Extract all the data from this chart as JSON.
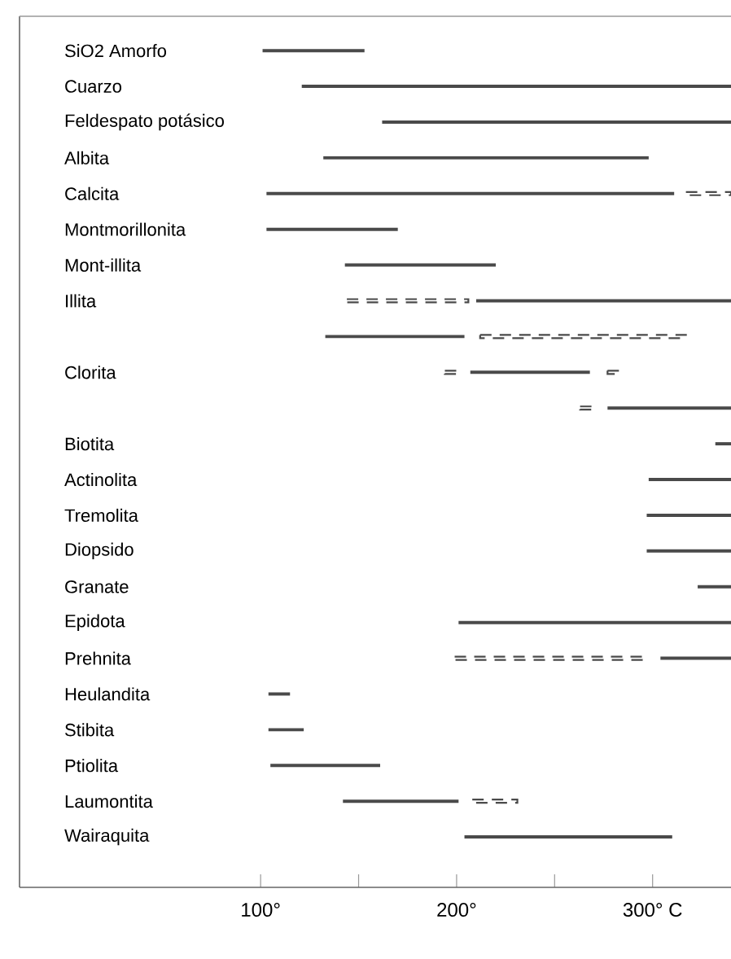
{
  "chart_data": {
    "type": "bar",
    "orientation": "horizontal",
    "categories": [
      "SiO2 Amorfo",
      "Cuarzo",
      "Feldespato potásico",
      "Albita",
      "Calcita",
      "Montmorillonita",
      "Mont-illita",
      "Illita",
      null,
      "Clorita",
      null,
      "Biotita",
      "Actinolita",
      "Tremolita",
      "Diopsido",
      "Granate",
      "Epidota",
      "Prehnita",
      "Heulandita",
      "Stibita",
      "Ptiolita",
      "Laumontita",
      "Wairaquita"
    ],
    "xlim": [
      -23,
      340
    ],
    "xticks": [
      {
        "value": 100,
        "label": "100°"
      },
      {
        "value": 150,
        "label": null
      },
      {
        "value": 200,
        "label": "200°"
      },
      {
        "value": 250,
        "label": null
      },
      {
        "value": 300,
        "label": "300° C"
      }
    ],
    "series": [
      {
        "color": "#4a4a4a",
        "line_style": "solid",
        "base": [
          101,
          121,
          162,
          132,
          103,
          103,
          143,
          210,
          133,
          207,
          277,
          332,
          298,
          297,
          297,
          323,
          201,
          304,
          104,
          104,
          105,
          142,
          204
        ],
        "values": [
          52,
          219,
          178,
          166,
          208,
          67,
          77,
          130,
          71,
          61,
          63,
          8,
          42,
          43,
          43,
          17,
          139,
          36,
          11,
          18,
          56,
          59,
          106
        ]
      },
      {
        "color": "#4a4a4a",
        "line_style": "dashed",
        "base": [
          null,
          null,
          null,
          null,
          317,
          null,
          null,
          144,
          212,
          194,
          263,
          null,
          null,
          null,
          null,
          null,
          null,
          199,
          null,
          null,
          null,
          208,
          null
        ],
        "values": [
          null,
          null,
          null,
          null,
          23,
          null,
          null,
          62,
          105,
          7,
          7,
          null,
          null,
          null,
          null,
          null,
          null,
          97,
          null,
          null,
          null,
          23,
          null
        ]
      },
      {
        "color": "#4a4a4a",
        "line_style": "dashed",
        "base": [
          null,
          null,
          null,
          null,
          null,
          null,
          null,
          null,
          null,
          277,
          null,
          null,
          null,
          null,
          null,
          null,
          null,
          null,
          null,
          null,
          null,
          null,
          null
        ],
        "values": [
          null,
          null,
          null,
          null,
          null,
          null,
          null,
          null,
          null,
          6,
          null,
          null,
          null,
          null,
          null,
          null,
          null,
          null,
          null,
          null,
          null,
          null,
          null
        ]
      }
    ]
  }
}
